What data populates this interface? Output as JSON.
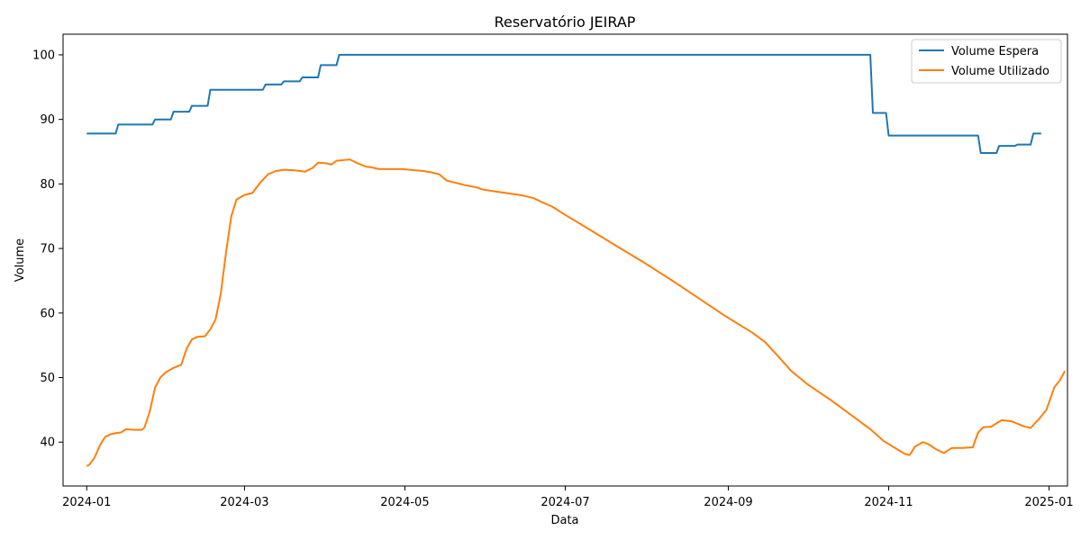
{
  "chart_data": {
    "type": "line",
    "title": "Reservatório JEIRAP",
    "xlabel": "Data",
    "ylabel": "Volume",
    "x_tick_labels": [
      "2024-01",
      "2024-03",
      "2024-05",
      "2024-07",
      "2024-09",
      "2024-11",
      "2025-01"
    ],
    "x_ticks": [
      "2024-01-01",
      "2024-03-01",
      "2024-05-01",
      "2024-07-01",
      "2024-09-01",
      "2024-11-01",
      "2025-01-01"
    ],
    "y_ticks": [
      40,
      50,
      60,
      70,
      80,
      90,
      100
    ],
    "xlim": [
      "2023-12-23",
      "2025-01-08"
    ],
    "ylim": [
      33.2,
      103.2
    ],
    "grid": false,
    "legend_position": "top-right",
    "series": [
      {
        "name": "Volume Espera",
        "color": "#1f77b4",
        "points": [
          [
            "2024-01-01",
            87.8
          ],
          [
            "2024-01-12",
            87.8
          ],
          [
            "2024-01-13",
            89.2
          ],
          [
            "2024-01-26",
            89.2
          ],
          [
            "2024-01-27",
            90.0
          ],
          [
            "2024-02-02",
            90.0
          ],
          [
            "2024-02-03",
            91.2
          ],
          [
            "2024-02-09",
            91.2
          ],
          [
            "2024-02-10",
            92.1
          ],
          [
            "2024-02-16",
            92.1
          ],
          [
            "2024-02-17",
            94.6
          ],
          [
            "2024-03-08",
            94.6
          ],
          [
            "2024-03-09",
            95.4
          ],
          [
            "2024-03-15",
            95.4
          ],
          [
            "2024-03-16",
            95.9
          ],
          [
            "2024-03-22",
            95.9
          ],
          [
            "2024-03-23",
            96.5
          ],
          [
            "2024-03-29",
            96.5
          ],
          [
            "2024-03-30",
            98.4
          ],
          [
            "2024-04-05",
            98.4
          ],
          [
            "2024-04-06",
            100.0
          ],
          [
            "2024-10-25",
            100.0
          ],
          [
            "2024-10-26",
            91.0
          ],
          [
            "2024-10-31",
            91.0
          ],
          [
            "2024-11-01",
            87.5
          ],
          [
            "2024-12-05",
            87.5
          ],
          [
            "2024-12-06",
            84.8
          ],
          [
            "2024-12-12",
            84.8
          ],
          [
            "2024-12-13",
            85.9
          ],
          [
            "2024-12-19",
            85.9
          ],
          [
            "2024-12-20",
            86.1
          ],
          [
            "2024-12-25",
            86.1
          ],
          [
            "2024-12-26",
            87.8
          ],
          [
            "2024-12-29",
            87.8
          ]
        ]
      },
      {
        "name": "Volume Utilizado",
        "color": "#ff7f0e",
        "points": [
          [
            "2024-01-01",
            36.3
          ],
          [
            "2024-01-02",
            36.5
          ],
          [
            "2024-01-04",
            37.6
          ],
          [
            "2024-01-06",
            39.5
          ],
          [
            "2024-01-08",
            40.8
          ],
          [
            "2024-01-10",
            41.2
          ],
          [
            "2024-01-12",
            41.4
          ],
          [
            "2024-01-14",
            41.5
          ],
          [
            "2024-01-16",
            42.0
          ],
          [
            "2024-01-19",
            41.9
          ],
          [
            "2024-01-22",
            41.9
          ],
          [
            "2024-01-23",
            42.3
          ],
          [
            "2024-01-25",
            44.8
          ],
          [
            "2024-01-27",
            48.5
          ],
          [
            "2024-01-29",
            50.0
          ],
          [
            "2024-01-31",
            50.8
          ],
          [
            "2024-02-03",
            51.5
          ],
          [
            "2024-02-06",
            52.0
          ],
          [
            "2024-02-08",
            54.5
          ],
          [
            "2024-02-10",
            55.9
          ],
          [
            "2024-02-12",
            56.3
          ],
          [
            "2024-02-15",
            56.4
          ],
          [
            "2024-02-17",
            57.5
          ],
          [
            "2024-02-19",
            59.0
          ],
          [
            "2024-02-21",
            63.0
          ],
          [
            "2024-02-23",
            69.5
          ],
          [
            "2024-02-25",
            75.0
          ],
          [
            "2024-02-27",
            77.6
          ],
          [
            "2024-03-01",
            78.3
          ],
          [
            "2024-03-04",
            78.6
          ],
          [
            "2024-03-07",
            80.2
          ],
          [
            "2024-03-10",
            81.5
          ],
          [
            "2024-03-13",
            82.0
          ],
          [
            "2024-03-16",
            82.2
          ],
          [
            "2024-03-20",
            82.1
          ],
          [
            "2024-03-24",
            81.9
          ],
          [
            "2024-03-27",
            82.5
          ],
          [
            "2024-03-29",
            83.3
          ],
          [
            "2024-04-01",
            83.2
          ],
          [
            "2024-04-03",
            83.0
          ],
          [
            "2024-04-05",
            83.6
          ],
          [
            "2024-04-08",
            83.7
          ],
          [
            "2024-04-10",
            83.8
          ],
          [
            "2024-04-13",
            83.2
          ],
          [
            "2024-04-16",
            82.7
          ],
          [
            "2024-04-18",
            82.6
          ],
          [
            "2024-04-21",
            82.3
          ],
          [
            "2024-04-25",
            82.3
          ],
          [
            "2024-04-30",
            82.3
          ],
          [
            "2024-05-05",
            82.1
          ],
          [
            "2024-05-08",
            82.0
          ],
          [
            "2024-05-11",
            81.8
          ],
          [
            "2024-05-14",
            81.5
          ],
          [
            "2024-05-17",
            80.5
          ],
          [
            "2024-05-20",
            80.2
          ],
          [
            "2024-05-24",
            79.8
          ],
          [
            "2024-05-28",
            79.5
          ],
          [
            "2024-05-31",
            79.1
          ],
          [
            "2024-06-05",
            78.8
          ],
          [
            "2024-06-10",
            78.5
          ],
          [
            "2024-06-15",
            78.2
          ],
          [
            "2024-06-19",
            77.8
          ],
          [
            "2024-06-22",
            77.2
          ],
          [
            "2024-06-26",
            76.5
          ],
          [
            "2024-07-01",
            75.2
          ],
          [
            "2024-07-10",
            73.0
          ],
          [
            "2024-07-20",
            70.5
          ],
          [
            "2024-07-31",
            67.8
          ],
          [
            "2024-08-05",
            66.5
          ],
          [
            "2024-08-10",
            65.2
          ],
          [
            "2024-08-20",
            62.5
          ],
          [
            "2024-08-31",
            59.5
          ],
          [
            "2024-09-10",
            57.0
          ],
          [
            "2024-09-15",
            55.5
          ],
          [
            "2024-09-20",
            53.3
          ],
          [
            "2024-09-25",
            51.0
          ],
          [
            "2024-10-01",
            49.0
          ],
          [
            "2024-10-10",
            46.5
          ],
          [
            "2024-10-20",
            43.5
          ],
          [
            "2024-10-25",
            42.0
          ],
          [
            "2024-10-30",
            40.2
          ],
          [
            "2024-11-03",
            39.2
          ],
          [
            "2024-11-07",
            38.2
          ],
          [
            "2024-11-09",
            38.0
          ],
          [
            "2024-11-11",
            39.3
          ],
          [
            "2024-11-14",
            40.0
          ],
          [
            "2024-11-16",
            39.7
          ],
          [
            "2024-11-19",
            38.9
          ],
          [
            "2024-11-22",
            38.3
          ],
          [
            "2024-11-25",
            39.1
          ],
          [
            "2024-11-29",
            39.1
          ],
          [
            "2024-12-03",
            39.2
          ],
          [
            "2024-12-05",
            41.5
          ],
          [
            "2024-12-07",
            42.3
          ],
          [
            "2024-12-10",
            42.4
          ],
          [
            "2024-12-14",
            43.4
          ],
          [
            "2024-12-18",
            43.2
          ],
          [
            "2024-12-22",
            42.5
          ],
          [
            "2024-12-25",
            42.2
          ],
          [
            "2024-12-28",
            43.5
          ],
          [
            "2024-12-31",
            45.0
          ],
          [
            "2025-01-03",
            48.5
          ],
          [
            "2025-01-05",
            49.5
          ],
          [
            "2025-01-07",
            51.0
          ]
        ]
      }
    ]
  }
}
